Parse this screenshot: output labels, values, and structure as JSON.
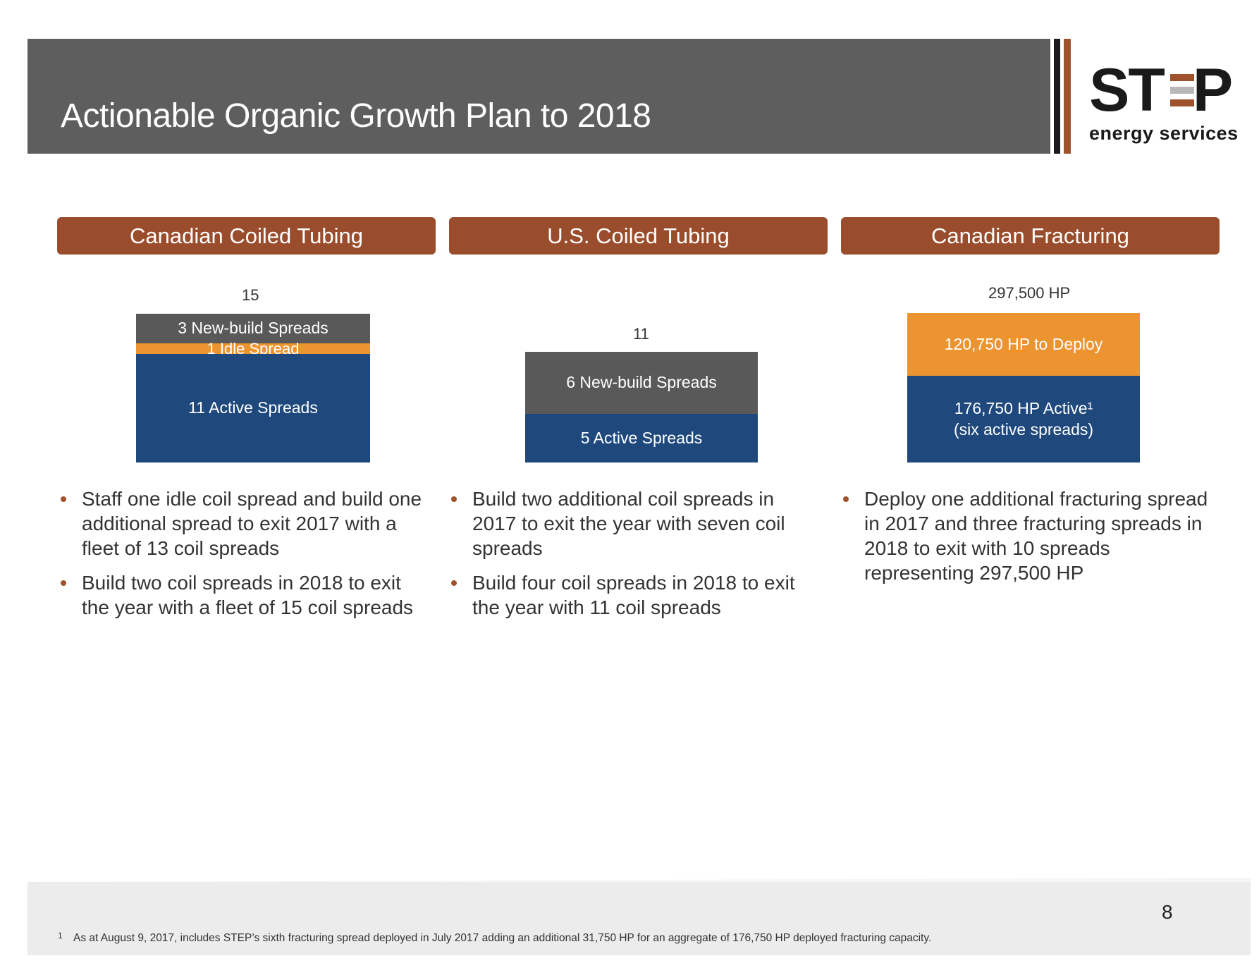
{
  "page": {
    "title": "Actionable Organic Growth Plan to 2018",
    "number": "8"
  },
  "logo": {
    "letters": "ST P",
    "subtitle": "energy services",
    "text": "STEP energy services"
  },
  "columns": [
    {
      "header": "Canadian Coiled Tubing",
      "total": "15",
      "segments": [
        {
          "label": "3 New-build Spreads",
          "value": 3,
          "color": "#595959"
        },
        {
          "label": "1 Idle Spread",
          "value": 1,
          "color": "#eb9430"
        },
        {
          "label": "11 Active Spreads",
          "value": 11,
          "color": "#1f497d"
        }
      ],
      "bullets": [
        "Staff one idle coil spread and build one additional spread to exit 2017 with a fleet of 13 coil spreads",
        "Build two coil spreads in 2018 to exit the year with a fleet of 15 coil spreads"
      ]
    },
    {
      "header": "U.S. Coiled Tubing",
      "total": "11",
      "segments": [
        {
          "label": "6 New-build Spreads",
          "value": 6,
          "color": "#595959"
        },
        {
          "label": "5 Active Spreads",
          "value": 5,
          "color": "#1f497d"
        }
      ],
      "bullets": [
        "Build two additional coil spreads in 2017 to exit the year with seven coil spreads",
        "Build four coil spreads in 2018 to exit the year with 11 coil spreads"
      ]
    },
    {
      "header": "Canadian Fracturing",
      "total": "297,500 HP",
      "segments": [
        {
          "label": "120,750 HP to Deploy",
          "value": 120750,
          "color": "#eb9430"
        },
        {
          "label": "176,750 HP Active¹",
          "label2": "(six active spreads)",
          "value": 176750,
          "color": "#1f497d"
        }
      ],
      "bullets": [
        "Deploy one additional fracturing spread in 2017 and three fracturing spreads in 2018 to exit with 10 spreads representing 297,500 HP"
      ]
    }
  ],
  "footnote": {
    "marker": "1",
    "text": "As at August 9, 2017, includes STEP’s sixth fracturing spread deployed in July 2017 adding an additional 31,750 HP for an aggregate of 176,750 HP deployed fracturing capacity."
  }
}
